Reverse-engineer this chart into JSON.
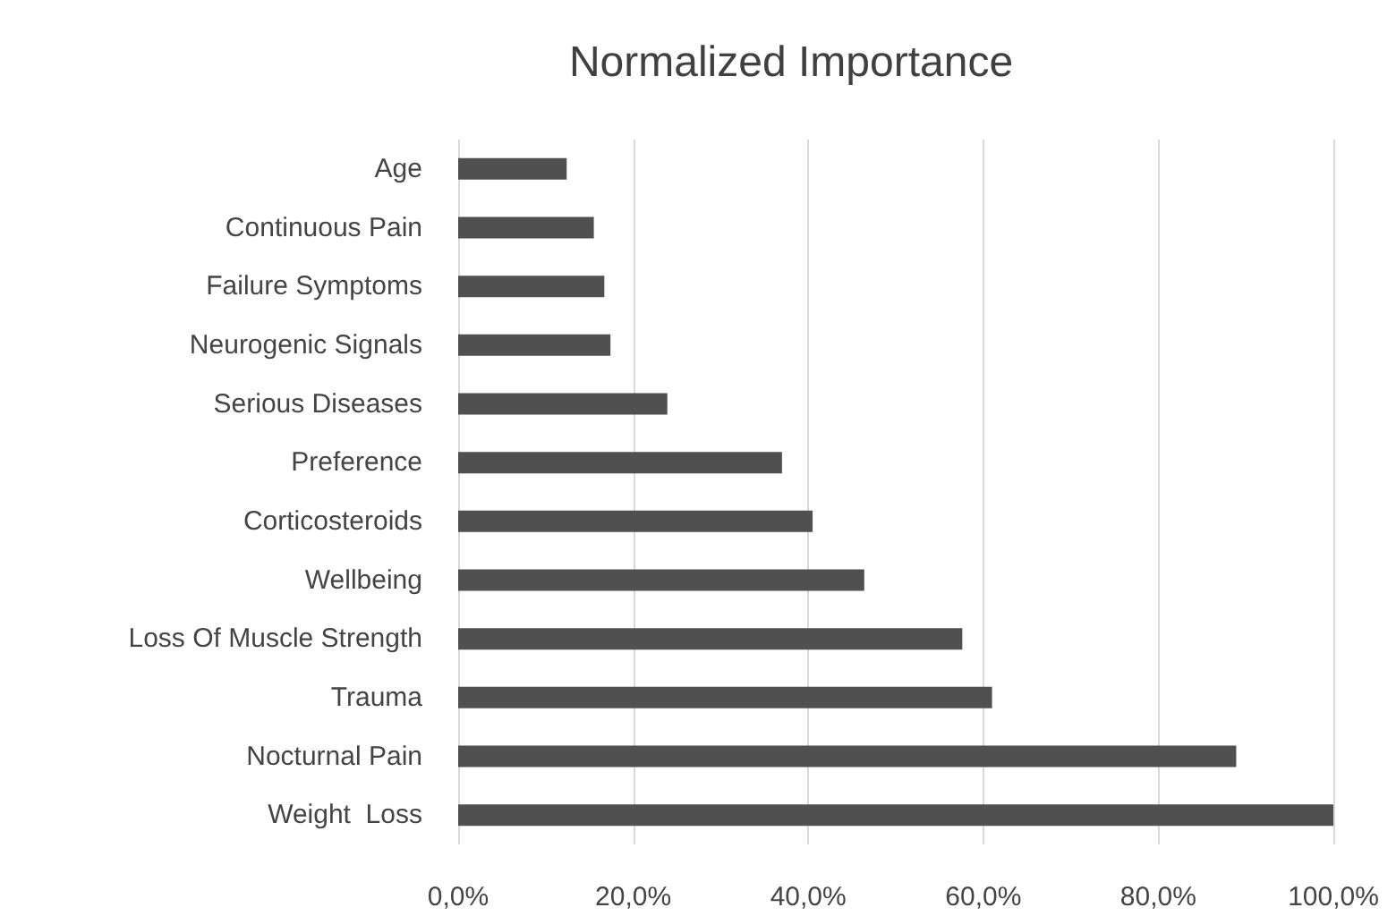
{
  "chart_data": {
    "type": "bar",
    "orientation": "horizontal",
    "title": "Normalized Importance",
    "categories": [
      "Age",
      "Continuous Pain",
      "Failure Symptoms",
      "Neurogenic Signals",
      "Serious Diseases",
      "Preference",
      "Corticosteroids",
      "Wellbeing",
      "Loss Of Muscle Strength",
      "Trauma",
      "Nocturnal Pain",
      "Weight  Loss"
    ],
    "values": [
      12.4,
      15.5,
      16.7,
      17.4,
      23.9,
      37.0,
      40.5,
      46.4,
      57.6,
      61.0,
      88.9,
      100
    ],
    "color": "#505050",
    "xlim": [
      0,
      100
    ],
    "xticks": [
      {
        "value": 0,
        "label": "0,0%"
      },
      {
        "value": 20,
        "label": "20,0%"
      },
      {
        "value": 40,
        "label": "40,0%"
      },
      {
        "value": 60,
        "label": "60,0%"
      },
      {
        "value": 80,
        "label": "80,0%"
      },
      {
        "value": 100,
        "label": "100,0%"
      }
    ],
    "grid": "x"
  }
}
